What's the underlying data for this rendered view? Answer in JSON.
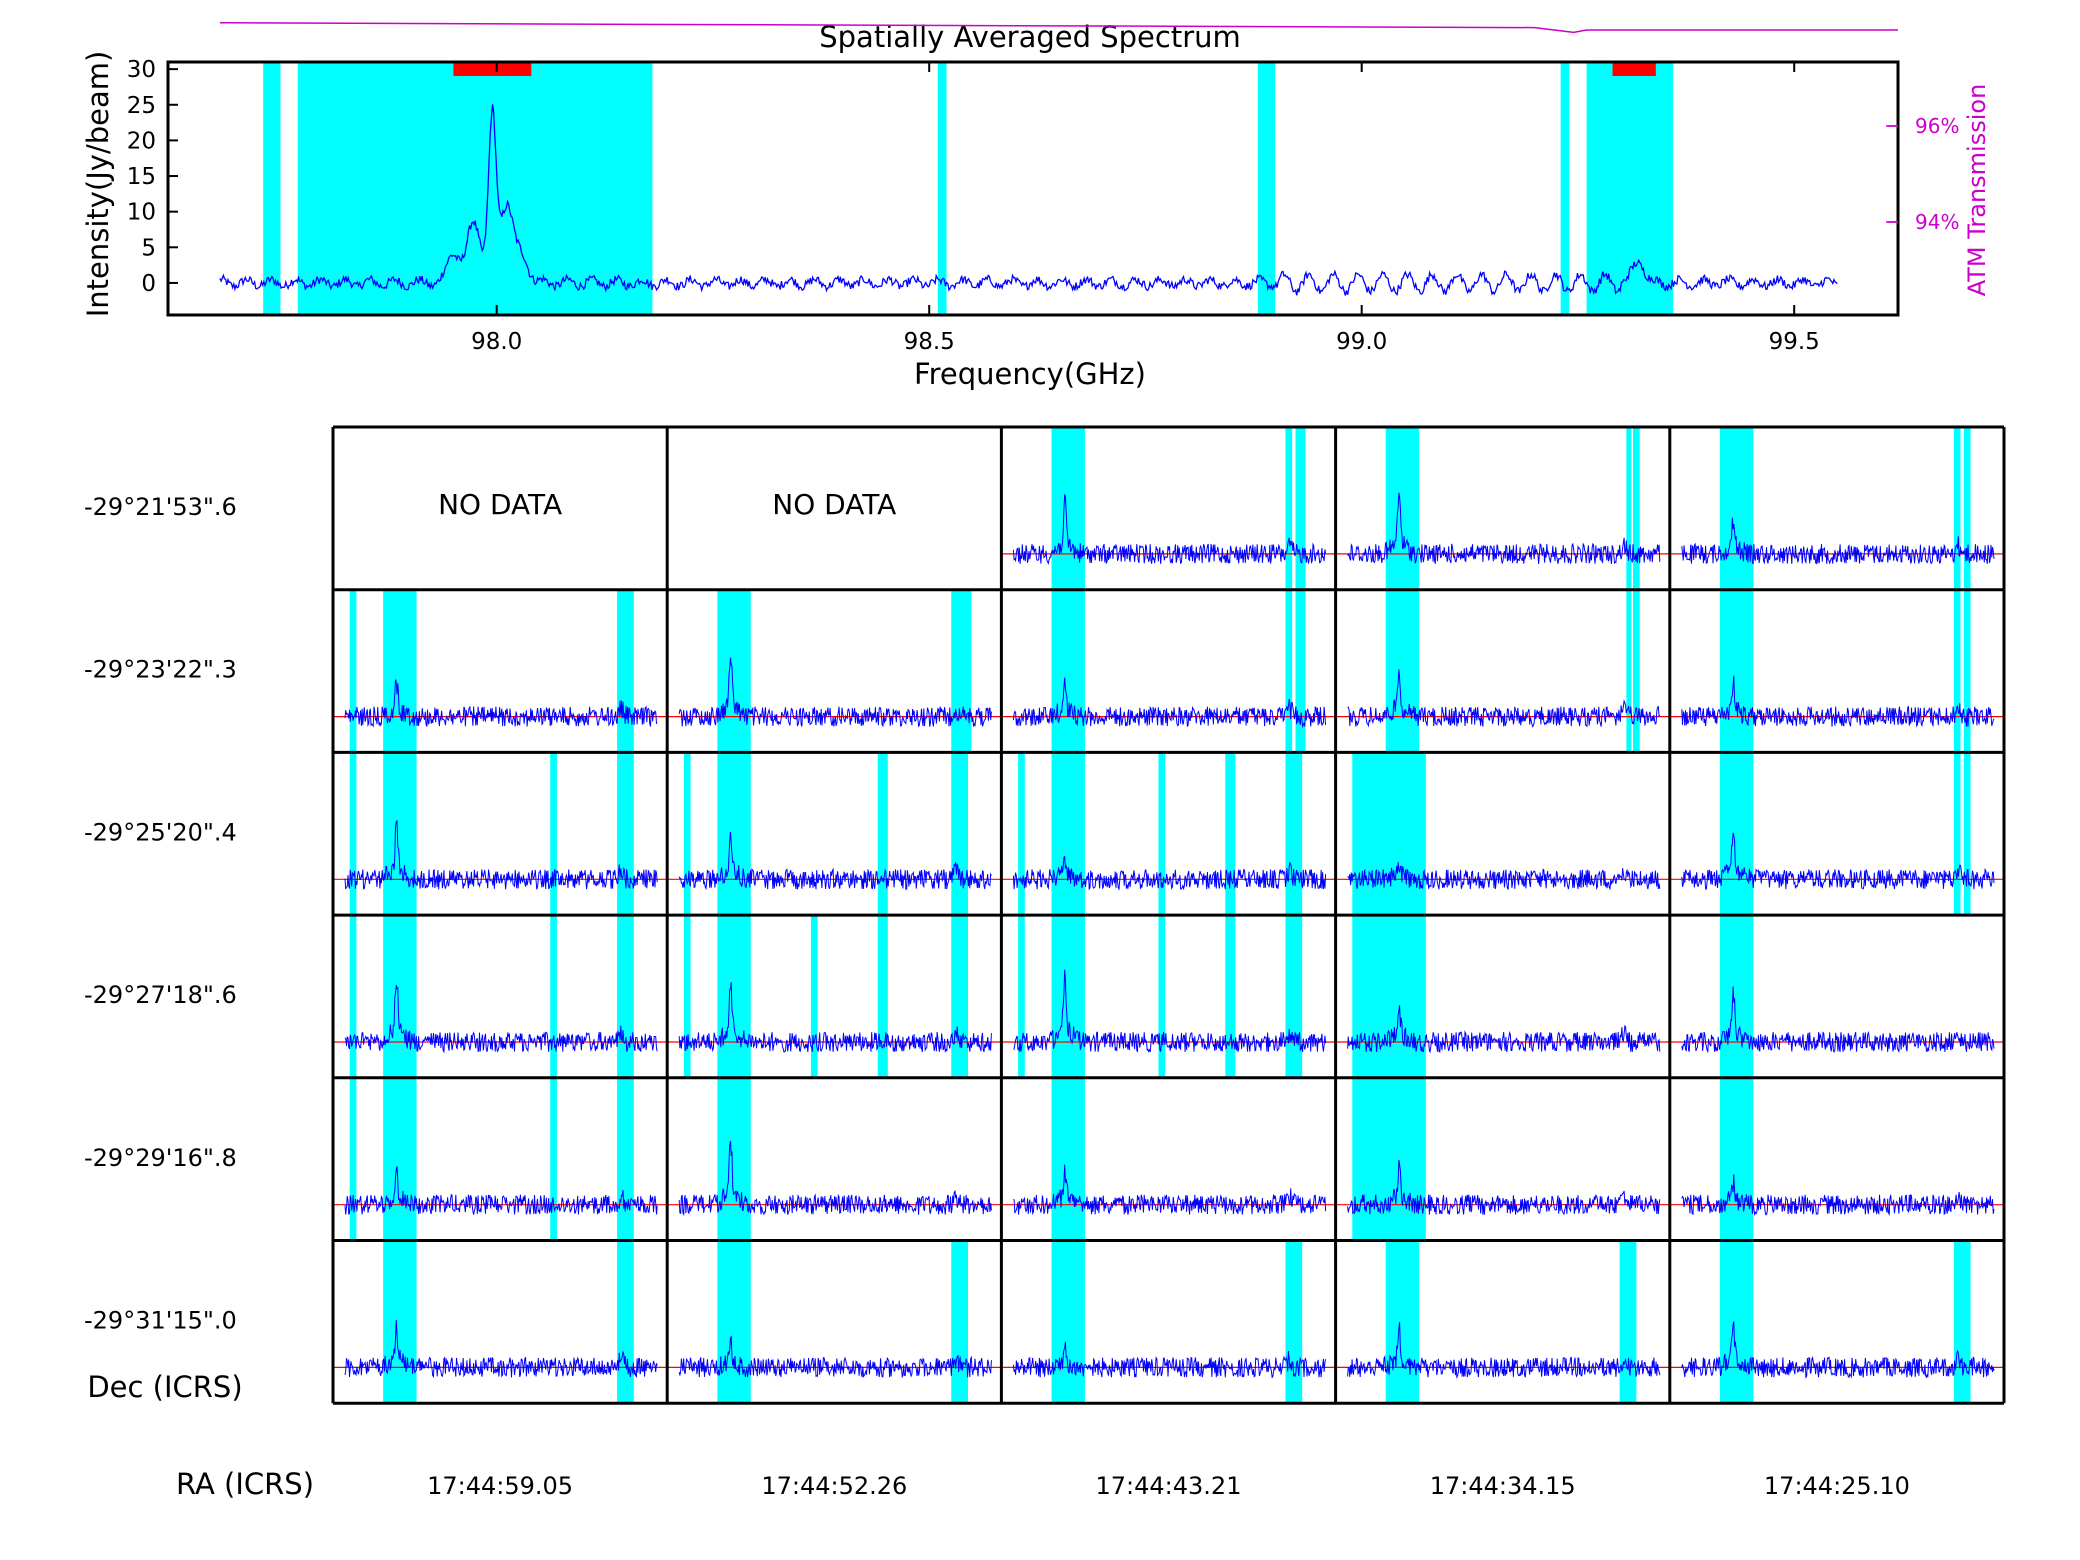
{
  "chart_data": [
    {
      "type": "line",
      "title": "Spatially Averaged Spectrum",
      "xlabel": "Frequency(GHz)",
      "ylabel": "Intensity(Jy/beam)",
      "y2label": "ATM Transmission",
      "xlim": [
        97.62,
        99.62
      ],
      "ylim": [
        -4.5,
        31
      ],
      "xticks": [
        98.0,
        98.5,
        99.0,
        99.5
      ],
      "xtick_labels": [
        "98.0",
        "98.5",
        "99.0",
        "99.5"
      ],
      "yticks": [
        0,
        5,
        10,
        15,
        20,
        25,
        30
      ],
      "ytick_labels": [
        "0",
        "5",
        "10",
        "15",
        "20",
        "25",
        "30"
      ],
      "y2ticks": [
        {
          "label": "96%",
          "value": 0.96
        },
        {
          "label": "94%",
          "value": 0.94
        }
      ],
      "colors": {
        "spectrum": "#0000ff",
        "atm": "#cc00cc",
        "flagged": "#00ffff",
        "line_windows": "#ff0000"
      },
      "flagged_ranges_ghz": [
        [
          97.73,
          97.75
        ],
        [
          97.77,
          98.18
        ],
        [
          98.51,
          98.52
        ],
        [
          98.88,
          98.9
        ],
        [
          99.23,
          99.24
        ],
        [
          99.26,
          99.36
        ]
      ],
      "line_windows_ghz": [
        [
          97.95,
          98.04
        ],
        [
          99.29,
          99.34
        ]
      ],
      "series": [
        {
          "type": "line",
          "x_range_ghz": [
            97.68,
            99.55
          ],
          "baseline": 0,
          "noise_amplitude": 0.6,
          "line_features": [
            {
              "center_ghz": 97.995,
              "peak": 21
            },
            {
              "center_ghz": 97.973,
              "peak": 7
            },
            {
              "center_ghz": 98.012,
              "peak": 9.5
            },
            {
              "center_ghz": 98.03,
              "peak": 3
            },
            {
              "center_ghz": 97.95,
              "peak": 4
            },
            {
              "center_ghz": 99.32,
              "peak": 3
            }
          ]
        },
        {
          "type": "line",
          "description_values": "atm transmission",
          "points": [
            [
              97.68,
              0.9815
            ],
            [
              99.2,
              0.9805
            ],
            [
              99.245,
              0.9795
            ],
            [
              99.26,
              0.98
            ],
            [
              99.62,
              0.98
            ]
          ]
        }
      ]
    },
    {
      "type": "line",
      "grid_layout": {
        "rows": 6,
        "cols": 5
      },
      "ra_axis_label": "RA (ICRS)",
      "dec_axis_label": "Dec (ICRS)",
      "ra_labels": [
        "17:44:59.05",
        "17:44:52.26",
        "17:44:43.21",
        "17:44:34.15",
        "17:44:25.10"
      ],
      "dec_labels": [
        "-29°21'53\".6",
        "-29°23'22\".3",
        "-29°25'20\".4",
        "-29°27'18\".6",
        "-29°29'16\".8",
        "-29°31'15\".0"
      ],
      "no_data_text": "NO DATA",
      "cells": [
        [
          {
            "no_data": true
          },
          {
            "no_data": true
          },
          {
            "peak": 0.45,
            "flags": [
              [
                0.15,
                0.25
              ],
              [
                0.85,
                0.87
              ],
              [
                0.88,
                0.91
              ]
            ]
          },
          {
            "peak": 0.55,
            "flags": [
              [
                0.15,
                0.25
              ],
              [
                0.87,
                0.88
              ],
              [
                0.89,
                0.91
              ]
            ]
          },
          {
            "peak": 0.3,
            "flags": [
              [
                0.15,
                0.25
              ],
              [
                0.85,
                0.87
              ],
              [
                0.88,
                0.9
              ]
            ]
          }
        ],
        [
          {
            "peak": 0.3,
            "flags": [
              [
                0.05,
                0.07
              ],
              [
                0.15,
                0.25
              ],
              [
                0.85,
                0.9
              ]
            ]
          },
          {
            "peak": 0.55,
            "flags": [
              [
                0.15,
                0.25
              ],
              [
                0.85,
                0.91
              ]
            ]
          },
          {
            "peak": 0.3,
            "flags": [
              [
                0.15,
                0.25
              ],
              [
                0.85,
                0.87
              ],
              [
                0.88,
                0.91
              ]
            ]
          },
          {
            "peak": 0.4,
            "flags": [
              [
                0.15,
                0.25
              ],
              [
                0.87,
                0.88
              ],
              [
                0.89,
                0.91
              ]
            ]
          },
          {
            "peak": 0.3,
            "flags": [
              [
                0.15,
                0.25
              ],
              [
                0.85,
                0.87
              ],
              [
                0.88,
                0.9
              ]
            ]
          }
        ],
        [
          {
            "peak": 0.5,
            "flags": [
              [
                0.05,
                0.07
              ],
              [
                0.15,
                0.25
              ],
              [
                0.65,
                0.67
              ],
              [
                0.85,
                0.9
              ]
            ]
          },
          {
            "peak": 0.4,
            "flags": [
              [
                0.05,
                0.07
              ],
              [
                0.15,
                0.25
              ],
              [
                0.63,
                0.66
              ],
              [
                0.85,
                0.9
              ]
            ]
          },
          {
            "peak": 0.15,
            "flags": [
              [
                0.05,
                0.07
              ],
              [
                0.15,
                0.25
              ],
              [
                0.47,
                0.49
              ],
              [
                0.67,
                0.7
              ],
              [
                0.85,
                0.88
              ],
              [
                0.88,
                0.9
              ]
            ]
          },
          {
            "peak": 0.15,
            "flags": [
              [
                0.05,
                0.27
              ]
            ]
          },
          {
            "peak": 0.45,
            "flags": [
              [
                0.15,
                0.25
              ],
              [
                0.85,
                0.87
              ],
              [
                0.88,
                0.9
              ]
            ]
          }
        ],
        [
          {
            "peak": 0.6,
            "flags": [
              [
                0.05,
                0.07
              ],
              [
                0.15,
                0.25
              ],
              [
                0.65,
                0.67
              ],
              [
                0.85,
                0.9
              ]
            ]
          },
          {
            "peak": 0.5,
            "flags": [
              [
                0.05,
                0.07
              ],
              [
                0.15,
                0.25
              ],
              [
                0.43,
                0.45
              ],
              [
                0.63,
                0.66
              ],
              [
                0.85,
                0.9
              ]
            ]
          },
          {
            "peak": 0.6,
            "flags": [
              [
                0.05,
                0.07
              ],
              [
                0.15,
                0.25
              ],
              [
                0.47,
                0.49
              ],
              [
                0.67,
                0.7
              ],
              [
                0.85,
                0.88
              ],
              [
                0.88,
                0.9
              ]
            ]
          },
          {
            "peak": 0.3,
            "flags": [
              [
                0.05,
                0.27
              ]
            ]
          },
          {
            "peak": 0.45,
            "flags": [
              [
                0.15,
                0.25
              ]
            ]
          }
        ],
        [
          {
            "peak": 0.3,
            "flags": [
              [
                0.05,
                0.07
              ],
              [
                0.15,
                0.25
              ],
              [
                0.65,
                0.67
              ],
              [
                0.85,
                0.9
              ]
            ]
          },
          {
            "peak": 0.55,
            "flags": [
              [
                0.15,
                0.25
              ]
            ]
          },
          {
            "peak": 0.3,
            "flags": [
              [
                0.15,
                0.25
              ]
            ]
          },
          {
            "peak": 0.35,
            "flags": [
              [
                0.05,
                0.27
              ]
            ]
          },
          {
            "peak": 0.2,
            "flags": [
              [
                0.15,
                0.25
              ]
            ]
          }
        ],
        [
          {
            "peak": 0.35,
            "flags": [
              [
                0.15,
                0.25
              ],
              [
                0.85,
                0.9
              ]
            ]
          },
          {
            "peak": 0.2,
            "flags": [
              [
                0.15,
                0.25
              ],
              [
                0.85,
                0.9
              ]
            ]
          },
          {
            "peak": 0.2,
            "flags": [
              [
                0.15,
                0.25
              ],
              [
                0.85,
                0.9
              ]
            ]
          },
          {
            "peak": 0.35,
            "flags": [
              [
                0.15,
                0.25
              ],
              [
                0.85,
                0.9
              ]
            ]
          },
          {
            "peak": 0.35,
            "flags": [
              [
                0.15,
                0.25
              ],
              [
                0.85,
                0.9
              ]
            ]
          }
        ]
      ]
    }
  ]
}
